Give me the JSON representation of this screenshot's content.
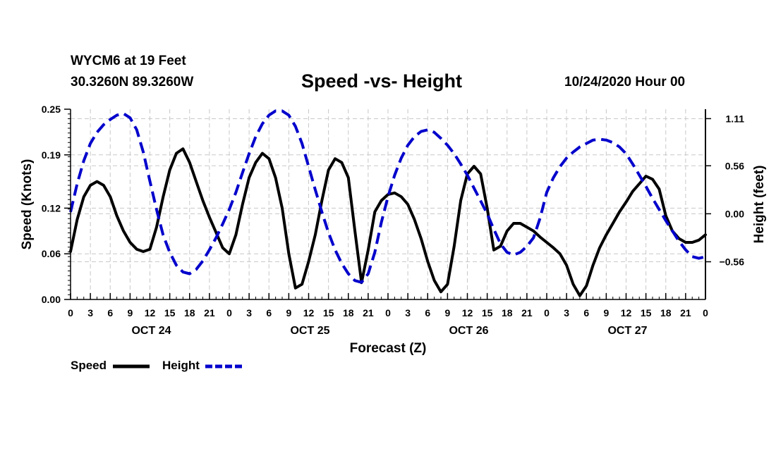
{
  "header": {
    "station": "WYCM6 at 19 Feet",
    "coords": "30.3260N 89.3260W",
    "title": "Speed -vs- Height",
    "run_time": "10/24/2020 Hour 00"
  },
  "legend": {
    "speed_label": "Speed",
    "height_label": "Height"
  },
  "colors": {
    "speed": "#000000",
    "height": "#0000cc",
    "grid": "#c8c8c8"
  },
  "chart_data": {
    "type": "line",
    "title": "Speed -vs- Height",
    "xlabel": "Forecast (Z)",
    "ylabel": "Speed (Knots)",
    "y2label": "Height (feet)",
    "xlim": [
      0,
      96
    ],
    "ylim": [
      0,
      0.25
    ],
    "y2lim": [
      -1.0,
      1.22
    ],
    "x_ticks": [
      0,
      3,
      6,
      9,
      12,
      15,
      18,
      21,
      24,
      27,
      30,
      33,
      36,
      39,
      42,
      45,
      48,
      51,
      54,
      57,
      60,
      63,
      66,
      69,
      72,
      75,
      78,
      81,
      84,
      87,
      90,
      93,
      96
    ],
    "x_tick_labels": [
      "0",
      "3",
      "6",
      "9",
      "12",
      "15",
      "18",
      "21",
      "0",
      "3",
      "6",
      "9",
      "12",
      "15",
      "18",
      "21",
      "0",
      "3",
      "6",
      "9",
      "12",
      "15",
      "18",
      "21",
      "0",
      "3",
      "6",
      "9",
      "12",
      "15",
      "18",
      "21",
      "0"
    ],
    "day_labels": [
      {
        "x": 12,
        "label": "OCT 24"
      },
      {
        "x": 36,
        "label": "OCT 25"
      },
      {
        "x": 60,
        "label": "OCT 26"
      },
      {
        "x": 84,
        "label": "OCT 27"
      }
    ],
    "y_ticks": [
      0.0,
      0.06,
      0.12,
      0.19,
      0.25
    ],
    "y_tick_labels": [
      "0.00",
      "0.06",
      "0.12",
      "0.19",
      "0.25"
    ],
    "y2_ticks": [
      1.11,
      0.56,
      0.0,
      -0.56
    ],
    "y2_tick_labels": [
      "1.11",
      "0.56",
      "0.00",
      "−0.56"
    ],
    "grid": true,
    "legend_position": "bottom-left",
    "series": [
      {
        "name": "Speed",
        "axis": "left",
        "style": "solid",
        "x": [
          0,
          1,
          2,
          3,
          4,
          5,
          6,
          7,
          8,
          9,
          10,
          11,
          12,
          13,
          14,
          15,
          16,
          17,
          18,
          19,
          20,
          21,
          22,
          23,
          24,
          25,
          26,
          27,
          28,
          29,
          30,
          31,
          32,
          33,
          34,
          35,
          36,
          37,
          38,
          39,
          40,
          41,
          42,
          43,
          44,
          45,
          46,
          47,
          48,
          49,
          50,
          51,
          52,
          53,
          54,
          55,
          56,
          57,
          58,
          59,
          60,
          61,
          62,
          63,
          64,
          65,
          66,
          67,
          68,
          69,
          70,
          71,
          72,
          73,
          74,
          75,
          76,
          77,
          78,
          79,
          80,
          81,
          82,
          83,
          84,
          85,
          86,
          87,
          88,
          89,
          90,
          91,
          92,
          93,
          94,
          95,
          96
        ],
        "values": [
          0.063,
          0.105,
          0.135,
          0.15,
          0.155,
          0.15,
          0.135,
          0.11,
          0.09,
          0.075,
          0.066,
          0.063,
          0.066,
          0.095,
          0.135,
          0.17,
          0.192,
          0.198,
          0.18,
          0.155,
          0.13,
          0.108,
          0.088,
          0.068,
          0.06,
          0.085,
          0.125,
          0.16,
          0.18,
          0.192,
          0.185,
          0.16,
          0.12,
          0.06,
          0.015,
          0.02,
          0.05,
          0.085,
          0.13,
          0.17,
          0.185,
          0.18,
          0.16,
          0.09,
          0.022,
          0.065,
          0.115,
          0.13,
          0.138,
          0.14,
          0.135,
          0.125,
          0.105,
          0.08,
          0.05,
          0.025,
          0.01,
          0.02,
          0.07,
          0.13,
          0.165,
          0.175,
          0.165,
          0.12,
          0.065,
          0.07,
          0.09,
          0.1,
          0.1,
          0.095,
          0.09,
          0.082,
          0.075,
          0.068,
          0.06,
          0.045,
          0.02,
          0.005,
          0.018,
          0.045,
          0.068,
          0.085,
          0.1,
          0.115,
          0.128,
          0.142,
          0.152,
          0.162,
          0.158,
          0.145,
          0.11,
          0.09,
          0.08,
          0.075,
          0.075,
          0.078,
          0.085
        ]
      },
      {
        "name": "Height",
        "axis": "right",
        "style": "dashed",
        "x": [
          0,
          1,
          2,
          3,
          4,
          5,
          6,
          7,
          8,
          9,
          10,
          11,
          12,
          13,
          14,
          15,
          16,
          17,
          18,
          19,
          20,
          21,
          22,
          23,
          24,
          25,
          26,
          27,
          28,
          29,
          30,
          31,
          32,
          33,
          34,
          35,
          36,
          37,
          38,
          39,
          40,
          41,
          42,
          43,
          44,
          45,
          46,
          47,
          48,
          49,
          50,
          51,
          52,
          53,
          54,
          55,
          56,
          57,
          58,
          59,
          60,
          61,
          62,
          63,
          64,
          65,
          66,
          67,
          68,
          69,
          70,
          71,
          72,
          73,
          74,
          75,
          76,
          77,
          78,
          79,
          80,
          81,
          82,
          83,
          84,
          85,
          86,
          87,
          88,
          89,
          90,
          91,
          92,
          93,
          94,
          95,
          96
        ],
        "values": [
          0.02,
          0.35,
          0.62,
          0.82,
          0.95,
          1.04,
          1.1,
          1.15,
          1.17,
          1.12,
          0.98,
          0.72,
          0.38,
          0.05,
          -0.25,
          -0.45,
          -0.6,
          -0.68,
          -0.7,
          -0.65,
          -0.55,
          -0.42,
          -0.28,
          -0.12,
          0.05,
          0.25,
          0.48,
          0.7,
          0.9,
          1.05,
          1.15,
          1.2,
          1.2,
          1.15,
          1.02,
          0.82,
          0.55,
          0.28,
          0.02,
          -0.22,
          -0.42,
          -0.58,
          -0.7,
          -0.78,
          -0.8,
          -0.7,
          -0.45,
          -0.1,
          0.2,
          0.45,
          0.65,
          0.8,
          0.9,
          0.96,
          0.98,
          0.95,
          0.88,
          0.8,
          0.7,
          0.58,
          0.45,
          0.3,
          0.15,
          0.0,
          -0.18,
          -0.35,
          -0.45,
          -0.48,
          -0.45,
          -0.38,
          -0.28,
          -0.05,
          0.25,
          0.42,
          0.55,
          0.65,
          0.72,
          0.78,
          0.82,
          0.86,
          0.87,
          0.86,
          0.83,
          0.78,
          0.7,
          0.58,
          0.45,
          0.32,
          0.18,
          0.05,
          -0.08,
          -0.2,
          -0.32,
          -0.42,
          -0.5,
          -0.52,
          -0.5
        ]
      }
    ]
  }
}
